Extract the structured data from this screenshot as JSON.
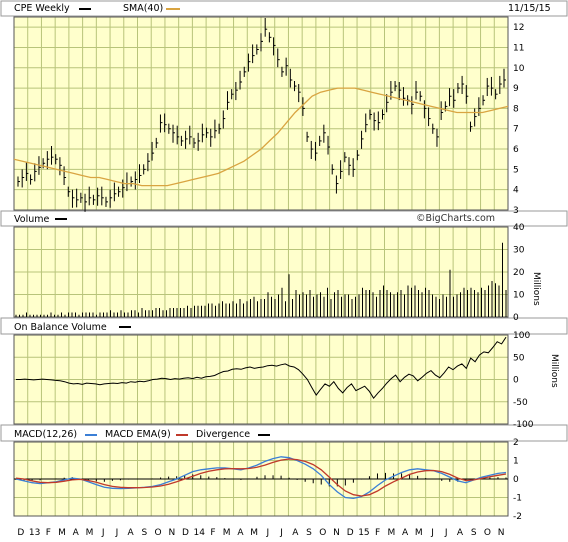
{
  "header": {
    "symbol_label": "CPE Weekly",
    "sma_label": "SMA(40)",
    "date": "11/15/15",
    "watermark": "©BigCharts.com"
  },
  "colors": {
    "panel_bg": "#ffffcc",
    "grid": "#b8c47a",
    "price_bars": "#000000",
    "sma": "#d9a441",
    "macd": "#3b7fd6",
    "macd_ema": "#c0392b",
    "divergence": "#000000"
  },
  "x_axis": {
    "labels": [
      "D",
      "13",
      "F",
      "M",
      "A",
      "M",
      "J",
      "J",
      "A",
      "S",
      "O",
      "N",
      "D",
      "14",
      "F",
      "M",
      "A",
      "M",
      "J",
      "J",
      "A",
      "S",
      "O",
      "N",
      "D",
      "15",
      "F",
      "M",
      "A",
      "M",
      "J",
      "J",
      "A",
      "S",
      "O",
      "N"
    ]
  },
  "panels": {
    "price": {
      "label": "CPE Weekly",
      "ticks": [
        "3",
        "4",
        "5",
        "6",
        "7",
        "8",
        "9",
        "10",
        "11",
        "12"
      ]
    },
    "volume": {
      "label": "Volume",
      "unit": "Millions",
      "ticks": [
        "0",
        "10",
        "20",
        "30",
        "40"
      ]
    },
    "obv": {
      "label": "On Balance Volume",
      "unit": "Millions",
      "ticks": [
        "-100",
        "-50",
        "0",
        "50",
        "100"
      ]
    },
    "macd": {
      "label_macd": "MACD(12,26)",
      "label_ema": "MACD EMA(9)",
      "label_div": "Divergence",
      "ticks": [
        "-2",
        "-1",
        "0",
        "1",
        "2"
      ]
    }
  },
  "chart_data": [
    {
      "type": "ohlc",
      "title": "CPE Weekly",
      "ylim": [
        3,
        12.5
      ],
      "series": [
        {
          "name": "CPE Weekly",
          "values": [
            4.4,
            4.6,
            4.8,
            4.5,
            4.9,
            5.1,
            5.3,
            5.5,
            5.6,
            5.5,
            5.2,
            4.6,
            3.9,
            3.6,
            3.5,
            3.6,
            3.4,
            3.6,
            3.5,
            3.7,
            3.6,
            3.4,
            3.6,
            3.8,
            3.9,
            4.1,
            4.3,
            4.4,
            4.5,
            4.7,
            5.0,
            5.4,
            5.8,
            6.3,
            7.3,
            7.2,
            7.0,
            6.8,
            6.6,
            6.4,
            6.5,
            6.6,
            6.3,
            6.4,
            6.7,
            6.8,
            6.6,
            6.9,
            7.0,
            7.5,
            8.3,
            8.7,
            8.9,
            9.3,
            9.8,
            10.3,
            10.6,
            10.9,
            11.3,
            11.9,
            11.5,
            11.1,
            10.4,
            9.8,
            10.1,
            9.4,
            9.1,
            8.8,
            8.0,
            6.6,
            6.0,
            5.8,
            6.4,
            6.8,
            6.1,
            5.0,
            4.3,
            4.9,
            5.6,
            5.2,
            5.0,
            5.7,
            6.5,
            7.2,
            7.7,
            7.4,
            7.3,
            7.7,
            8.3,
            8.8,
            9.1,
            8.9,
            8.5,
            8.4,
            8.2,
            8.8,
            8.6,
            8.0,
            7.5,
            7.0,
            6.6,
            7.8,
            8.1,
            8.6,
            8.4,
            9.0,
            9.2,
            8.6,
            7.1,
            7.6,
            8.0,
            8.4,
            9.1,
            9.0,
            8.7,
            9.2,
            9.4
          ]
        },
        {
          "name": "SMA(40)",
          "values": [
            5.5,
            5.4,
            5.3,
            5.2,
            5.1,
            5.0,
            4.9,
            4.8,
            4.7,
            4.6,
            4.6,
            4.5,
            4.4,
            4.3,
            4.3,
            4.2,
            4.2,
            4.2,
            4.2,
            4.3,
            4.4,
            4.5,
            4.6,
            4.7,
            4.8,
            5.0,
            5.2,
            5.4,
            5.7,
            6.0,
            6.4,
            6.8,
            7.3,
            7.8,
            8.2,
            8.6,
            8.8,
            8.9,
            9.0,
            9.0,
            9.0,
            8.9,
            8.8,
            8.7,
            8.6,
            8.5,
            8.4,
            8.3,
            8.2,
            8.1,
            8.0,
            7.9,
            7.8,
            7.8,
            7.8,
            7.8,
            7.9,
            8.0,
            8.1
          ]
        }
      ]
    },
    {
      "type": "bar",
      "title": "Volume",
      "ylabel": "Millions",
      "ylim": [
        0,
        40
      ],
      "values": [
        1,
        1,
        1,
        2,
        1,
        1,
        1,
        1,
        1,
        1,
        2,
        1,
        1,
        2,
        1,
        2,
        2,
        2,
        1,
        2,
        2,
        2,
        2,
        1,
        2,
        2,
        2,
        3,
        2,
        2,
        3,
        2,
        2,
        3,
        3,
        2,
        4,
        3,
        3,
        3,
        4,
        4,
        3,
        3,
        4,
        4,
        4,
        4,
        4,
        5,
        4,
        5,
        5,
        5,
        5,
        6,
        6,
        5,
        6,
        7,
        6,
        6,
        7,
        6,
        8,
        6,
        7,
        8,
        9,
        7,
        8,
        8,
        11,
        9,
        8,
        10,
        13,
        7,
        19,
        8,
        12,
        10,
        11,
        10,
        12,
        9,
        10,
        11,
        9,
        13,
        8,
        11,
        12,
        9,
        10,
        10,
        8,
        9,
        10,
        13,
        12,
        12,
        11,
        9,
        12,
        14,
        12,
        11,
        10,
        11,
        12,
        10,
        14,
        13,
        14,
        12,
        11,
        13,
        12,
        10,
        9,
        8,
        10,
        9,
        21,
        9,
        10,
        11,
        13,
        12,
        13,
        12,
        11,
        13,
        12,
        14,
        16,
        15,
        14,
        33,
        12
      ]
    },
    {
      "type": "line",
      "title": "On Balance Volume",
      "ylabel": "Millions",
      "ylim": [
        -100,
        100
      ],
      "values": [
        0,
        0,
        1,
        0,
        -1,
        0,
        1,
        0,
        -1,
        -2,
        -3,
        -5,
        -8,
        -10,
        -9,
        -11,
        -8,
        -9,
        -10,
        -12,
        -10,
        -9,
        -8,
        -9,
        -7,
        -8,
        -5,
        -6,
        -4,
        -5,
        -3,
        0,
        1,
        3,
        2,
        0,
        2,
        1,
        3,
        4,
        2,
        5,
        3,
        6,
        7,
        9,
        14,
        18,
        19,
        23,
        24,
        23,
        26,
        28,
        25,
        27,
        28,
        31,
        32,
        30,
        33,
        35,
        30,
        28,
        22,
        12,
        0,
        -18,
        -35,
        -22,
        -10,
        -15,
        -5,
        -20,
        -30,
        -18,
        -10,
        -25,
        -20,
        -15,
        -26,
        -42,
        -30,
        -20,
        -8,
        2,
        10,
        -5,
        5,
        12,
        8,
        -3,
        5,
        14,
        20,
        10,
        4,
        15,
        28,
        22,
        30,
        35,
        25,
        48,
        40,
        55,
        62,
        60,
        72,
        85,
        80,
        95
      ]
    },
    {
      "type": "line",
      "title": "MACD",
      "ylim": [
        -2,
        2
      ],
      "series": [
        {
          "name": "MACD(12,26)",
          "values": [
            0.0,
            -0.1,
            -0.2,
            -0.25,
            -0.2,
            -0.15,
            -0.05,
            0.05,
            0.0,
            -0.15,
            -0.3,
            -0.45,
            -0.5,
            -0.52,
            -0.5,
            -0.48,
            -0.45,
            -0.4,
            -0.3,
            -0.15,
            0.0,
            0.2,
            0.4,
            0.5,
            0.55,
            0.6,
            0.6,
            0.55,
            0.5,
            0.6,
            0.75,
            0.95,
            1.1,
            1.2,
            1.15,
            1.0,
            0.8,
            0.55,
            0.2,
            -0.3,
            -0.7,
            -1.0,
            -1.05,
            -0.95,
            -0.7,
            -0.35,
            -0.05,
            0.15,
            0.35,
            0.5,
            0.55,
            0.5,
            0.45,
            0.3,
            0.1,
            -0.1,
            -0.2,
            -0.05,
            0.1,
            0.2,
            0.3,
            0.35
          ]
        },
        {
          "name": "MACD EMA(9)",
          "values": [
            0.05,
            0.0,
            -0.1,
            -0.18,
            -0.2,
            -0.18,
            -0.12,
            -0.05,
            -0.02,
            -0.08,
            -0.18,
            -0.3,
            -0.4,
            -0.45,
            -0.47,
            -0.47,
            -0.46,
            -0.43,
            -0.38,
            -0.28,
            -0.15,
            0.0,
            0.15,
            0.3,
            0.42,
            0.5,
            0.55,
            0.56,
            0.55,
            0.57,
            0.63,
            0.75,
            0.9,
            1.02,
            1.08,
            1.05,
            0.95,
            0.78,
            0.5,
            0.1,
            -0.3,
            -0.65,
            -0.85,
            -0.92,
            -0.85,
            -0.65,
            -0.38,
            -0.15,
            0.05,
            0.25,
            0.38,
            0.45,
            0.46,
            0.4,
            0.25,
            0.05,
            -0.08,
            -0.05,
            0.03,
            0.12,
            0.2,
            0.27
          ]
        },
        {
          "name": "Divergence",
          "values": [
            -0.05,
            -0.1,
            -0.1,
            -0.07,
            0.0,
            0.03,
            0.07,
            0.1,
            0.02,
            -0.07,
            -0.12,
            -0.15,
            -0.1,
            -0.07,
            -0.03,
            -0.01,
            0.01,
            0.03,
            0.08,
            0.13,
            0.15,
            0.2,
            0.25,
            0.2,
            0.13,
            0.1,
            0.05,
            -0.01,
            -0.05,
            0.03,
            0.12,
            0.2,
            0.2,
            0.18,
            0.07,
            -0.05,
            -0.15,
            -0.23,
            -0.3,
            -0.4,
            -0.4,
            -0.35,
            -0.2,
            -0.03,
            0.15,
            0.3,
            0.33,
            0.3,
            0.3,
            0.25,
            0.17,
            0.05,
            -0.01,
            -0.1,
            -0.15,
            -0.15,
            -0.12,
            0.0,
            0.07,
            0.08,
            0.1,
            0.08
          ]
        }
      ]
    }
  ]
}
